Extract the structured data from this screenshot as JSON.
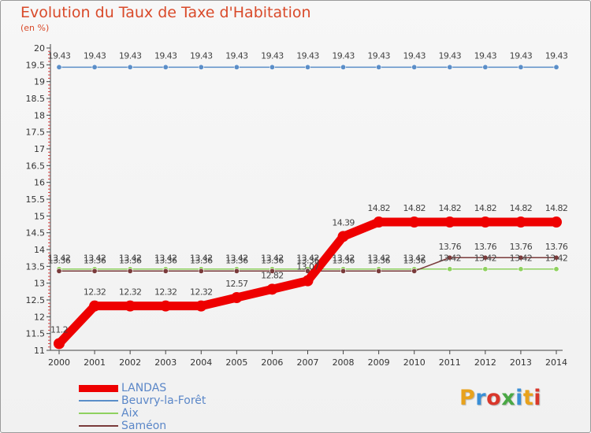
{
  "header": {
    "title": "Evolution du Taux de Taxe d'Habitation",
    "subtitle": "(en %)"
  },
  "logo": {
    "text": "Proxiti",
    "letters": [
      "P",
      "r",
      "o",
      "x",
      "i",
      "t",
      "i"
    ],
    "colors": [
      "#e8a21c",
      "#3a8fd6",
      "#d9372b",
      "#4aa845",
      "#3a8fd6",
      "#e8a21c",
      "#d9372b"
    ]
  },
  "chart_data": {
    "type": "line",
    "title": "Evolution du Taux de Taxe d'Habitation",
    "ylabel": "(en %)",
    "x": [
      "2000",
      "2001",
      "2002",
      "2003",
      "2004",
      "2005",
      "2006",
      "2007",
      "2008",
      "2009",
      "2010",
      "2011",
      "2012",
      "2013",
      "2014"
    ],
    "ylim": [
      11,
      20
    ],
    "yticks": [
      "11",
      "11.5",
      "12",
      "12.5",
      "13",
      "13.5",
      "14",
      "14.5",
      "15",
      "15.5",
      "16",
      "16.5",
      "17",
      "17.5",
      "18",
      "18.5",
      "19",
      "19.5",
      "20"
    ],
    "grid": false,
    "legend_position": "bottom-left",
    "series": [
      {
        "name": "LANDAS",
        "color": "#ee0000",
        "emphasis": true,
        "values": [
          11.2,
          12.32,
          12.32,
          12.32,
          12.32,
          12.57,
          12.82,
          13.07,
          14.39,
          14.82,
          14.82,
          14.82,
          14.82,
          14.82,
          14.82
        ],
        "labels": [
          "11.2",
          "12.32",
          "12.32",
          "12.32",
          "12.32",
          "12.57",
          "12.82",
          "13.07",
          "14.39",
          "14.82",
          "14.82",
          "14.82",
          "14.82",
          "14.82",
          "14.82"
        ]
      },
      {
        "name": "Beuvry-la-Forêt",
        "color": "#5b8ec8",
        "values": [
          19.43,
          19.43,
          19.43,
          19.43,
          19.43,
          19.43,
          19.43,
          19.43,
          19.43,
          19.43,
          19.43,
          19.43,
          19.43,
          19.43,
          19.43
        ],
        "labels": [
          "19.43",
          "19.43",
          "19.43",
          "19.43",
          "19.43",
          "19.43",
          "19.43",
          "19.43",
          "19.43",
          "19.43",
          "19.43",
          "19.43",
          "19.43",
          "19.43",
          "19.43"
        ]
      },
      {
        "name": "Aix",
        "color": "#8fd15f",
        "values": [
          13.42,
          13.42,
          13.42,
          13.42,
          13.42,
          13.42,
          13.42,
          13.42,
          13.42,
          13.42,
          13.42,
          13.42,
          13.42,
          13.42,
          13.42
        ],
        "labels": [
          "13.42",
          "13.42",
          "13.42",
          "13.42",
          "13.42",
          "13.42",
          "13.42",
          "13.42",
          "13.42",
          "13.42",
          "13.42",
          "13.42",
          "13.42",
          "13.42",
          "13.42"
        ]
      },
      {
        "name": "Saméon",
        "color": "#7a3b3b",
        "values": [
          13.36,
          13.36,
          13.36,
          13.36,
          13.36,
          13.36,
          13.36,
          13.36,
          13.36,
          13.36,
          13.36,
          13.76,
          13.76,
          13.76,
          13.76
        ],
        "labels": [
          "13.36",
          "13.36",
          "13.36",
          "13.36",
          "13.36",
          "13.36",
          "13.36",
          "13.36",
          "13.36",
          "13.36",
          "13.36",
          "13.76",
          "13.76",
          "13.76",
          "13.76"
        ]
      }
    ]
  }
}
